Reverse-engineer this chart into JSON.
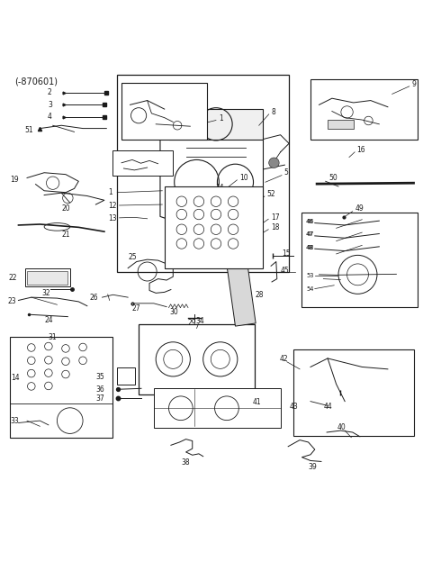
{
  "title": "(-870601)",
  "bg_color": "#ffffff",
  "line_color": "#1a1a1a",
  "text_color": "#1a1a1a",
  "fig_width": 4.8,
  "fig_height": 6.24,
  "dpi": 100
}
